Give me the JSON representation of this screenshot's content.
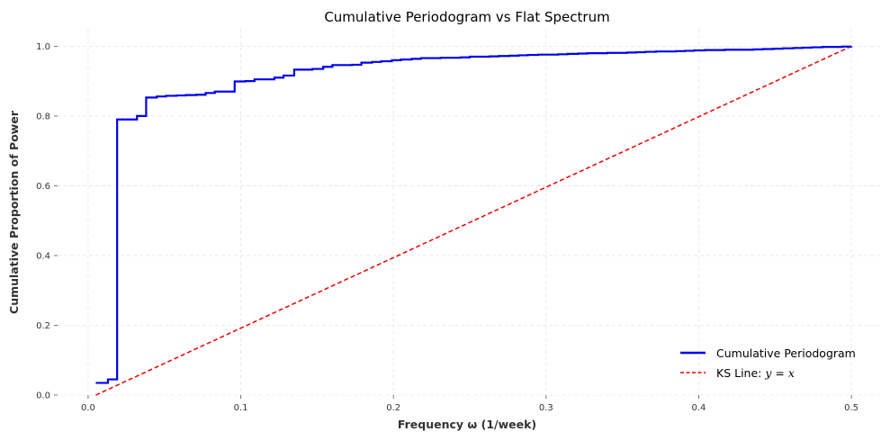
{
  "chart_data": {
    "type": "line",
    "title": "Cumulative Periodogram vs Flat Spectrum",
    "xlabel": "Frequency ω (1/week)",
    "ylabel": "Cumulative Proportion of Power",
    "xlim": [
      -0.02,
      0.52
    ],
    "ylim": [
      0.0,
      1.05
    ],
    "xticks": [
      0.0,
      0.1,
      0.2,
      0.3,
      0.4,
      0.5
    ],
    "xtick_labels": [
      "0.0",
      "0.1",
      "0.2",
      "0.3",
      "0.4",
      "0.5"
    ],
    "yticks": [
      0.0,
      0.2,
      0.4,
      0.6,
      0.8,
      1.0
    ],
    "ytick_labels": [
      "0.0",
      "0.2",
      "0.4",
      "0.6",
      "0.8",
      "1.0"
    ],
    "grid": true,
    "legend_position": "lower-right",
    "series": [
      {
        "name": "Cumulative Periodogram",
        "style": "steps-post",
        "color": "#0000ee",
        "x": [
          0.005,
          0.013,
          0.019,
          0.032,
          0.038,
          0.045,
          0.051,
          0.058,
          0.064,
          0.071,
          0.077,
          0.083,
          0.09,
          0.096,
          0.103,
          0.109,
          0.115,
          0.122,
          0.128,
          0.135,
          0.141,
          0.147,
          0.154,
          0.16,
          0.167,
          0.173,
          0.179,
          0.186,
          0.192,
          0.199,
          0.205,
          0.212,
          0.218,
          0.224,
          0.231,
          0.237,
          0.244,
          0.25,
          0.256,
          0.263,
          0.269,
          0.276,
          0.282,
          0.288,
          0.295,
          0.301,
          0.308,
          0.314,
          0.321,
          0.327,
          0.333,
          0.34,
          0.346,
          0.353,
          0.359,
          0.365,
          0.372,
          0.378,
          0.385,
          0.391,
          0.397,
          0.404,
          0.41,
          0.417,
          0.423,
          0.429,
          0.436,
          0.442,
          0.449,
          0.455,
          0.462,
          0.468,
          0.474,
          0.481,
          0.487,
          0.494,
          0.5
        ],
        "y": [
          0.035,
          0.045,
          0.79,
          0.8,
          0.853,
          0.856,
          0.858,
          0.859,
          0.86,
          0.861,
          0.866,
          0.87,
          0.87,
          0.899,
          0.9,
          0.905,
          0.905,
          0.91,
          0.916,
          0.933,
          0.933,
          0.935,
          0.941,
          0.946,
          0.946,
          0.947,
          0.953,
          0.955,
          0.957,
          0.96,
          0.962,
          0.964,
          0.966,
          0.966,
          0.967,
          0.967,
          0.968,
          0.97,
          0.97,
          0.971,
          0.972,
          0.973,
          0.974,
          0.975,
          0.976,
          0.976,
          0.977,
          0.978,
          0.979,
          0.98,
          0.98,
          0.981,
          0.981,
          0.982,
          0.983,
          0.984,
          0.985,
          0.985,
          0.986,
          0.987,
          0.988,
          0.989,
          0.989,
          0.99,
          0.99,
          0.99,
          0.991,
          0.992,
          0.993,
          0.994,
          0.995,
          0.996,
          0.997,
          0.998,
          0.998,
          0.999,
          1.0
        ]
      },
      {
        "name": "KS Line: ",
        "name_math": "y = x",
        "style": "dashed",
        "color": "#ee0000",
        "x": [
          0.005,
          0.5
        ],
        "y": [
          0.0,
          1.0
        ]
      }
    ]
  }
}
